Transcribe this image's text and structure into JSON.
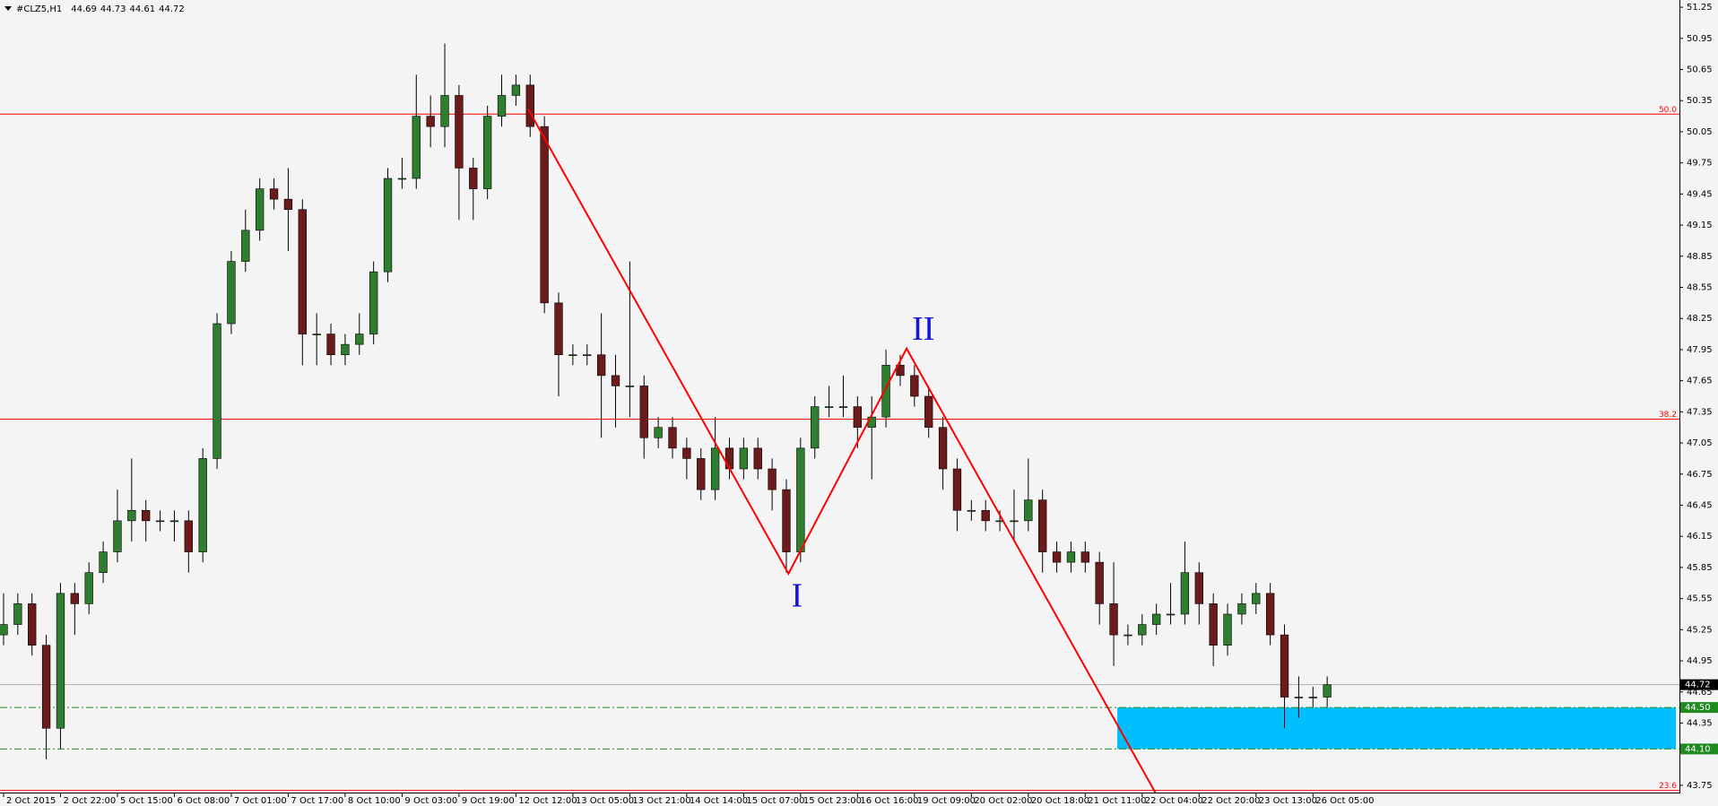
{
  "chart_data": {
    "type": "candlestick",
    "title": "#CLZ5,H1",
    "header_values": [
      44.69,
      44.73,
      44.61,
      44.72
    ],
    "xlim": [
      -1,
      471
    ],
    "ylim": [
      43.68,
      51.32
    ],
    "yticks": [
      51.25,
      50.95,
      50.65,
      50.35,
      50.05,
      49.75,
      49.45,
      49.15,
      48.85,
      48.55,
      48.25,
      47.95,
      47.65,
      47.35,
      47.05,
      46.75,
      46.45,
      46.15,
      45.85,
      45.55,
      45.25,
      44.95,
      44.65,
      44.35,
      43.75
    ],
    "xticks": [
      {
        "value": 0,
        "label": "2 Oct 2015"
      },
      {
        "value": 16,
        "label": "2 Oct 22:00"
      },
      {
        "value": 32,
        "label": "5 Oct 15:00"
      },
      {
        "value": 48,
        "label": "6 Oct 08:00"
      },
      {
        "value": 64,
        "label": "7 Oct 01:00"
      },
      {
        "value": 80,
        "label": "7 Oct 17:00"
      },
      {
        "value": 96,
        "label": "8 Oct 10:00"
      },
      {
        "value": 112,
        "label": "9 Oct 03:00"
      },
      {
        "value": 128,
        "label": "9 Oct 19:00"
      },
      {
        "value": 144,
        "label": "12 Oct 12:00"
      },
      {
        "value": 160,
        "label": "13 Oct 05:00"
      },
      {
        "value": 176,
        "label": "13 Oct 21:00"
      },
      {
        "value": 192,
        "label": "14 Oct 14:00"
      },
      {
        "value": 208,
        "label": "15 Oct 07:00"
      },
      {
        "value": 224,
        "label": "15 Oct 23:00"
      },
      {
        "value": 240,
        "label": "16 Oct 16:00"
      },
      {
        "value": 256,
        "label": "19 Oct 09:00"
      },
      {
        "value": 272,
        "label": "20 Oct 02:00"
      },
      {
        "value": 288,
        "label": "20 Oct 18:00"
      },
      {
        "value": 304,
        "label": "21 Oct 11:00"
      },
      {
        "value": 320,
        "label": "22 Oct 04:00"
      },
      {
        "value": 336,
        "label": "22 Oct 20:00"
      },
      {
        "value": 352,
        "label": "23 Oct 13:00"
      },
      {
        "value": 368,
        "label": "26 Oct 05:00"
      }
    ],
    "up_color": "#2f7d2f",
    "down_color": "#6b1b1b",
    "x": [
      0,
      4,
      8,
      12,
      16,
      20,
      24,
      28,
      32,
      36,
      40,
      44,
      48,
      52,
      56,
      60,
      64,
      68,
      72,
      76,
      80,
      84,
      88,
      92,
      96,
      100,
      104,
      108,
      112,
      116,
      120,
      124,
      128,
      132,
      136,
      140,
      144,
      148,
      152,
      156,
      160,
      164,
      168,
      172,
      176,
      180,
      184,
      188,
      192,
      196,
      200,
      204,
      208,
      212,
      216,
      220,
      224,
      228,
      232,
      236,
      240,
      244,
      248,
      252,
      256,
      260,
      264,
      268,
      272,
      276,
      280,
      284,
      288,
      292,
      296,
      300,
      304,
      308,
      312,
      316,
      320,
      324,
      328,
      332,
      336,
      340,
      344,
      348,
      352,
      356,
      360,
      364,
      368,
      372
    ],
    "open": [
      45.2,
      45.3,
      45.5,
      45.1,
      44.3,
      45.6,
      45.5,
      45.8,
      46.0,
      46.3,
      46.4,
      46.3,
      46.3,
      46.3,
      46.0,
      46.9,
      48.2,
      48.8,
      49.1,
      49.5,
      49.4,
      49.3,
      48.1,
      48.1,
      47.9,
      48.0,
      48.1,
      48.7,
      49.6,
      49.6,
      50.2,
      50.1,
      50.4,
      49.7,
      49.5,
      50.2,
      50.4,
      50.5,
      50.1,
      48.4,
      47.9,
      47.9,
      47.9,
      47.7,
      47.6,
      47.6,
      47.1,
      47.2,
      47.0,
      46.9,
      46.6,
      47.0,
      46.8,
      47.0,
      46.8,
      46.6,
      46.0,
      47.0,
      47.4,
      47.4,
      47.4,
      47.2,
      47.3,
      47.8,
      47.7,
      47.5,
      47.2,
      46.8,
      46.4,
      46.4,
      46.3,
      46.3,
      46.3,
      46.5,
      46.0,
      45.9,
      46.0,
      45.9,
      45.5,
      45.2,
      45.2,
      45.3,
      45.4,
      45.4,
      45.8,
      45.5,
      45.1,
      45.4,
      45.5,
      45.6,
      45.2,
      44.6,
      44.6,
      44.6
    ],
    "high": [
      45.6,
      45.6,
      45.6,
      45.2,
      45.7,
      45.7,
      45.9,
      46.1,
      46.6,
      46.9,
      46.5,
      46.4,
      46.4,
      46.4,
      47.0,
      48.3,
      48.9,
      49.3,
      49.6,
      49.6,
      49.7,
      49.4,
      48.3,
      48.2,
      48.1,
      48.3,
      48.8,
      49.7,
      49.8,
      50.6,
      50.4,
      50.9,
      50.5,
      49.8,
      50.3,
      50.6,
      50.6,
      50.6,
      50.2,
      48.5,
      48.0,
      48.0,
      48.3,
      47.9,
      48.8,
      47.7,
      47.3,
      47.3,
      47.1,
      47.0,
      47.3,
      47.1,
      47.1,
      47.1,
      46.9,
      46.7,
      47.1,
      47.5,
      47.6,
      47.7,
      47.5,
      47.5,
      47.95,
      47.9,
      47.8,
      47.6,
      47.3,
      46.9,
      46.5,
      46.5,
      46.4,
      46.6,
      46.9,
      46.6,
      46.1,
      46.1,
      46.1,
      46.0,
      45.9,
      45.3,
      45.4,
      45.5,
      45.7,
      46.1,
      45.9,
      45.6,
      45.5,
      45.6,
      45.7,
      45.7,
      45.3,
      44.8,
      44.7,
      44.8
    ],
    "low": [
      45.1,
      45.2,
      45.0,
      44.0,
      44.1,
      45.2,
      45.4,
      45.7,
      45.9,
      46.1,
      46.1,
      46.2,
      46.1,
      45.8,
      45.9,
      46.8,
      48.1,
      48.7,
      49.0,
      49.3,
      48.9,
      47.8,
      47.8,
      47.8,
      47.8,
      47.9,
      48.0,
      48.6,
      49.5,
      49.5,
      49.9,
      49.9,
      49.2,
      49.2,
      49.4,
      50.1,
      50.3,
      50.0,
      48.3,
      47.5,
      47.8,
      47.8,
      47.1,
      47.2,
      47.3,
      46.9,
      47.0,
      46.9,
      46.7,
      46.5,
      46.5,
      46.7,
      46.7,
      46.7,
      46.4,
      45.8,
      45.9,
      46.9,
      47.3,
      47.3,
      47.0,
      46.7,
      47.2,
      47.6,
      47.4,
      47.1,
      46.6,
      46.2,
      46.3,
      46.2,
      46.2,
      46.1,
      46.2,
      45.8,
      45.8,
      45.8,
      45.8,
      45.3,
      44.9,
      45.1,
      45.1,
      45.2,
      45.3,
      45.3,
      45.3,
      44.9,
      45.0,
      45.3,
      45.4,
      45.1,
      44.3,
      44.4,
      44.5,
      44.5
    ],
    "close": [
      45.3,
      45.5,
      45.1,
      44.3,
      45.6,
      45.5,
      45.8,
      46.0,
      46.3,
      46.4,
      46.3,
      46.3,
      46.3,
      46.0,
      46.9,
      48.2,
      48.8,
      49.1,
      49.5,
      49.4,
      49.3,
      48.1,
      48.1,
      47.9,
      48.0,
      48.1,
      48.7,
      49.6,
      49.6,
      50.2,
      50.1,
      50.4,
      49.7,
      49.5,
      50.2,
      50.4,
      50.5,
      50.1,
      48.4,
      47.9,
      47.9,
      47.9,
      47.7,
      47.6,
      47.6,
      47.1,
      47.2,
      47.0,
      46.9,
      46.6,
      47.0,
      46.8,
      47.0,
      46.8,
      46.6,
      46.0,
      47.0,
      47.4,
      47.4,
      47.4,
      47.2,
      47.3,
      47.8,
      47.7,
      47.5,
      47.2,
      46.8,
      46.4,
      46.4,
      46.3,
      46.3,
      46.3,
      46.5,
      46.0,
      45.9,
      46.0,
      45.9,
      45.5,
      45.2,
      45.2,
      45.3,
      45.4,
      45.4,
      45.8,
      45.5,
      45.1,
      45.4,
      45.5,
      45.6,
      45.2,
      44.6,
      44.6,
      44.6,
      44.72
    ],
    "fib_levels": [
      {
        "value": 50.22,
        "label": "50.0"
      },
      {
        "value": 47.28,
        "label": "38.2"
      },
      {
        "value": 43.7,
        "label": "23.6"
      }
    ],
    "fib_color": "#ff0000",
    "price_line": 44.72,
    "zone_lines": [
      {
        "value": 44.5,
        "label": "44.50"
      },
      {
        "value": 44.1,
        "label": "44.10"
      }
    ],
    "zone": {
      "x": [
        313,
        470
      ],
      "y": [
        44.1,
        44.5
      ],
      "color": "#00bfff"
    },
    "zigzag": {
      "x": [
        147.4,
        220.6,
        253.8,
        323.7
      ],
      "y": [
        50.27,
        45.79,
        47.96,
        43.68
      ],
      "color": "#ff0000"
    },
    "wave_labels": [
      {
        "text": "I",
        "x": 223,
        "y": 45.55
      },
      {
        "text": "II",
        "x": 258.5,
        "y": 48.12
      }
    ]
  }
}
